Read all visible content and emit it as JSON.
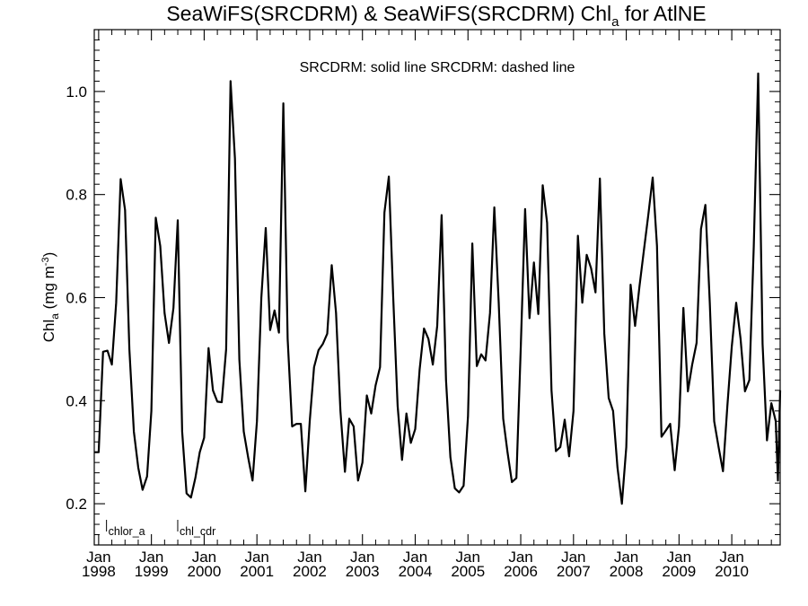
{
  "chart_data": {
    "type": "line",
    "title": {
      "main": "SeaWiFS(SRCDRM) & SeaWiFS(SRCDRM)  Chl",
      "sub": "a",
      "tail": " for AtlNE"
    },
    "legend_text": "SRCDRM: solid line   SRCDRM: dashed line",
    "ylabel": {
      "base": "Chl",
      "sub": "a",
      "unit": " (mg m",
      "sup": "-3",
      "close": ")"
    },
    "ylim": [
      0.12,
      1.12
    ],
    "yticks": [
      "0.2",
      "0.4",
      "0.6",
      "0.8",
      "1.0"
    ],
    "xlim": [
      1997.917,
      2010.917
    ],
    "xticks": [
      {
        "month": "Jan",
        "year": "1998"
      },
      {
        "month": "Jan",
        "year": "1999"
      },
      {
        "month": "Jan",
        "year": "2000"
      },
      {
        "month": "Jan",
        "year": "2001"
      },
      {
        "month": "Jan",
        "year": "2002"
      },
      {
        "month": "Jan",
        "year": "2003"
      },
      {
        "month": "Jan",
        "year": "2004"
      },
      {
        "month": "Jan",
        "year": "2005"
      },
      {
        "month": "Jan",
        "year": "2006"
      },
      {
        "month": "Jan",
        "year": "2007"
      },
      {
        "month": "Jan",
        "year": "2008"
      },
      {
        "month": "Jan",
        "year": "2009"
      },
      {
        "month": "Jan",
        "year": "2010"
      }
    ],
    "grid": false,
    "series": [
      {
        "name": "SRCDRM",
        "style": "solid",
        "color": "#000000",
        "points": [
          [
            1997.917,
            0.3
          ],
          [
            1998.0,
            0.3
          ],
          [
            1998.083,
            0.495
          ],
          [
            1998.167,
            0.497
          ],
          [
            1998.25,
            0.47
          ],
          [
            1998.333,
            0.59
          ],
          [
            1998.417,
            0.83
          ],
          [
            1998.5,
            0.77
          ],
          [
            1998.583,
            0.5
          ],
          [
            1998.667,
            0.34
          ],
          [
            1998.75,
            0.27
          ],
          [
            1998.833,
            0.227
          ],
          [
            1998.917,
            0.253
          ],
          [
            1999.0,
            0.38
          ],
          [
            1999.083,
            0.755
          ],
          [
            1999.167,
            0.7
          ],
          [
            1999.25,
            0.57
          ],
          [
            1999.333,
            0.512
          ],
          [
            1999.417,
            0.58
          ],
          [
            1999.5,
            0.75
          ],
          [
            1999.583,
            0.34
          ],
          [
            1999.667,
            0.22
          ],
          [
            1999.75,
            0.212
          ],
          [
            1999.833,
            0.25
          ],
          [
            1999.917,
            0.3
          ],
          [
            2000.0,
            0.328
          ],
          [
            2000.083,
            0.502
          ],
          [
            2000.167,
            0.42
          ],
          [
            2000.25,
            0.398
          ],
          [
            2000.333,
            0.397
          ],
          [
            2000.417,
            0.5
          ],
          [
            2000.5,
            1.02
          ],
          [
            2000.583,
            0.87
          ],
          [
            2000.667,
            0.48
          ],
          [
            2000.75,
            0.34
          ],
          [
            2000.833,
            0.29
          ],
          [
            2000.917,
            0.245
          ],
          [
            2001.0,
            0.36
          ],
          [
            2001.083,
            0.6
          ],
          [
            2001.167,
            0.735
          ],
          [
            2001.25,
            0.537
          ],
          [
            2001.333,
            0.575
          ],
          [
            2001.417,
            0.532
          ],
          [
            2001.5,
            0.977
          ],
          [
            2001.583,
            0.52
          ],
          [
            2001.667,
            0.35
          ],
          [
            2001.75,
            0.355
          ],
          [
            2001.833,
            0.355
          ],
          [
            2001.917,
            0.224
          ],
          [
            2002.0,
            0.36
          ],
          [
            2002.083,
            0.465
          ],
          [
            2002.167,
            0.498
          ],
          [
            2002.25,
            0.51
          ],
          [
            2002.333,
            0.53
          ],
          [
            2002.417,
            0.663
          ],
          [
            2002.5,
            0.57
          ],
          [
            2002.583,
            0.38
          ],
          [
            2002.667,
            0.262
          ],
          [
            2002.75,
            0.365
          ],
          [
            2002.833,
            0.35
          ],
          [
            2002.917,
            0.245
          ],
          [
            2003.0,
            0.28
          ],
          [
            2003.083,
            0.41
          ],
          [
            2003.167,
            0.375
          ],
          [
            2003.25,
            0.43
          ],
          [
            2003.333,
            0.465
          ],
          [
            2003.417,
            0.765
          ],
          [
            2003.5,
            0.835
          ],
          [
            2003.583,
            0.6
          ],
          [
            2003.667,
            0.39
          ],
          [
            2003.75,
            0.285
          ],
          [
            2003.833,
            0.375
          ],
          [
            2003.917,
            0.318
          ],
          [
            2004.0,
            0.345
          ],
          [
            2004.083,
            0.46
          ],
          [
            2004.167,
            0.54
          ],
          [
            2004.25,
            0.52
          ],
          [
            2004.333,
            0.47
          ],
          [
            2004.417,
            0.545
          ],
          [
            2004.5,
            0.76
          ],
          [
            2004.583,
            0.44
          ],
          [
            2004.667,
            0.29
          ],
          [
            2004.75,
            0.23
          ],
          [
            2004.833,
            0.222
          ],
          [
            2004.917,
            0.235
          ],
          [
            2005.0,
            0.37
          ],
          [
            2005.083,
            0.705
          ],
          [
            2005.167,
            0.467
          ],
          [
            2005.25,
            0.49
          ],
          [
            2005.333,
            0.478
          ],
          [
            2005.417,
            0.57
          ],
          [
            2005.5,
            0.775
          ],
          [
            2005.583,
            0.59
          ],
          [
            2005.667,
            0.365
          ],
          [
            2005.75,
            0.3
          ],
          [
            2005.833,
            0.242
          ],
          [
            2005.917,
            0.25
          ],
          [
            2006.0,
            0.5
          ],
          [
            2006.083,
            0.772
          ],
          [
            2006.167,
            0.56
          ],
          [
            2006.25,
            0.668
          ],
          [
            2006.333,
            0.568
          ],
          [
            2006.417,
            0.818
          ],
          [
            2006.5,
            0.745
          ],
          [
            2006.583,
            0.42
          ],
          [
            2006.667,
            0.302
          ],
          [
            2006.75,
            0.31
          ],
          [
            2006.833,
            0.363
          ],
          [
            2006.917,
            0.292
          ],
          [
            2007.0,
            0.38
          ],
          [
            2007.083,
            0.72
          ],
          [
            2007.167,
            0.59
          ],
          [
            2007.25,
            0.683
          ],
          [
            2007.333,
            0.657
          ],
          [
            2007.417,
            0.61
          ],
          [
            2007.5,
            0.831
          ],
          [
            2007.583,
            0.53
          ],
          [
            2007.667,
            0.405
          ],
          [
            2007.75,
            0.38
          ],
          [
            2007.833,
            0.27
          ],
          [
            2007.917,
            0.2
          ],
          [
            2008.0,
            0.31
          ],
          [
            2008.083,
            0.625
          ],
          [
            2008.167,
            0.545
          ],
          [
            2008.25,
            0.622
          ],
          [
            2008.333,
            0.69
          ],
          [
            2008.417,
            0.76
          ],
          [
            2008.5,
            0.833
          ],
          [
            2008.583,
            0.7
          ],
          [
            2008.667,
            0.33
          ],
          [
            2008.75,
            0.342
          ],
          [
            2008.833,
            0.355
          ],
          [
            2008.917,
            0.265
          ],
          [
            2009.0,
            0.35
          ],
          [
            2009.083,
            0.58
          ],
          [
            2009.167,
            0.418
          ],
          [
            2009.25,
            0.47
          ],
          [
            2009.333,
            0.512
          ],
          [
            2009.417,
            0.733
          ],
          [
            2009.5,
            0.78
          ],
          [
            2009.583,
            0.59
          ],
          [
            2009.667,
            0.36
          ],
          [
            2009.75,
            0.31
          ],
          [
            2009.833,
            0.263
          ],
          [
            2009.917,
            0.39
          ],
          [
            2010.0,
            0.505
          ],
          [
            2010.083,
            0.59
          ],
          [
            2010.167,
            0.52
          ],
          [
            2010.25,
            0.418
          ],
          [
            2010.333,
            0.44
          ],
          [
            2010.417,
            0.7
          ],
          [
            2010.5,
            1.035
          ],
          [
            2010.583,
            0.51
          ],
          [
            2010.667,
            0.323
          ],
          [
            2010.75,
            0.395
          ],
          [
            2010.833,
            0.36
          ],
          [
            2010.875,
            0.245
          ],
          [
            2010.917,
            0.42
          ]
        ]
      }
    ],
    "marker_labels": [
      {
        "text": "chlor_a",
        "x": 1998.2
      },
      {
        "text": "chl_cdr",
        "x": 1999.55
      }
    ]
  }
}
